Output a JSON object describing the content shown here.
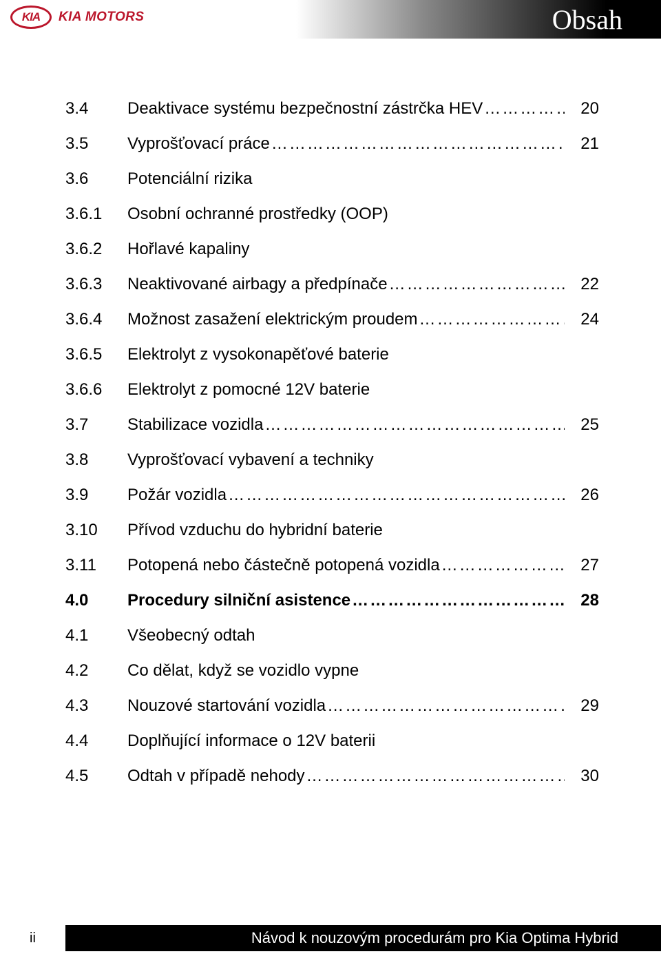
{
  "colors": {
    "brand_red": "#bb162b",
    "title_gradient_start": "#ffffff",
    "title_gradient_mid": "#888888",
    "title_gradient_end": "#000000",
    "footer_bg": "#000000",
    "page_bg": "#ffffff",
    "text": "#000000"
  },
  "header": {
    "logo_oval": "KIA",
    "logo_text": "KIA MOTORS",
    "title": "Obsah"
  },
  "toc": [
    {
      "num": "3.4",
      "label": "Deaktivace systému bezpečnostní zástrčka HEV",
      "page": "20",
      "leader": true,
      "bold": false
    },
    {
      "num": "3.5",
      "label": "Vyprošťovací práce",
      "page": "21",
      "leader": true,
      "bold": false
    },
    {
      "num": "3.6",
      "label": "Potenciální rizika",
      "page": "",
      "leader": false,
      "bold": false
    },
    {
      "num": "3.6.1",
      "label": "Osobní ochranné prostředky (OOP)",
      "page": "",
      "leader": false,
      "bold": false
    },
    {
      "num": "3.6.2",
      "label": "Hořlavé kapaliny",
      "page": "",
      "leader": false,
      "bold": false
    },
    {
      "num": "3.6.3",
      "label": "Neaktivované airbagy a předpínače",
      "page": "22",
      "leader": true,
      "bold": false
    },
    {
      "num": "3.6.4",
      "label": "Možnost zasažení elektrickým proudem",
      "page": "24",
      "leader": true,
      "bold": false
    },
    {
      "num": "3.6.5",
      "label": "Elektrolyt z vysokonapěťové baterie",
      "page": "",
      "leader": false,
      "bold": false
    },
    {
      "num": "3.6.6",
      "label": "Elektrolyt z pomocné 12V baterie",
      "page": "",
      "leader": false,
      "bold": false
    },
    {
      "num": "3.7",
      "label": "Stabilizace vozidla",
      "page": "25",
      "leader": true,
      "bold": false
    },
    {
      "num": "3.8",
      "label": "Vyprošťovací vybavení a techniky",
      "page": "",
      "leader": false,
      "bold": false
    },
    {
      "num": "3.9",
      "label": "Požár vozidla",
      "page": "26",
      "leader": true,
      "bold": false
    },
    {
      "num": "3.10",
      "label": "Přívod vzduchu do hybridní baterie",
      "page": "",
      "leader": false,
      "bold": false
    },
    {
      "num": "3.11",
      "label": "Potopená nebo částečně potopená vozidla",
      "page": "27",
      "leader": true,
      "bold": false
    },
    {
      "num": "4.0",
      "label": "Procedury silniční asistence",
      "page": "28",
      "leader": true,
      "bold": true
    },
    {
      "num": "4.1",
      "label": "Všeobecný odtah",
      "page": "",
      "leader": false,
      "bold": false
    },
    {
      "num": "4.2",
      "label": "Co dělat, když se vozidlo vypne",
      "page": "",
      "leader": false,
      "bold": false
    },
    {
      "num": "4.3",
      "label": "Nouzové startování vozidla",
      "page": "29",
      "leader": true,
      "bold": false
    },
    {
      "num": "4.4",
      "label": "Doplňující informace o 12V baterii",
      "page": "",
      "leader": false,
      "bold": false
    },
    {
      "num": "4.5",
      "label": "Odtah v případě nehody",
      "page": "30",
      "leader": true,
      "bold": false
    }
  ],
  "footer": {
    "page_marker": "ii",
    "text": "Návod k nouzovým procedurám pro Kia Optima Hybrid"
  }
}
